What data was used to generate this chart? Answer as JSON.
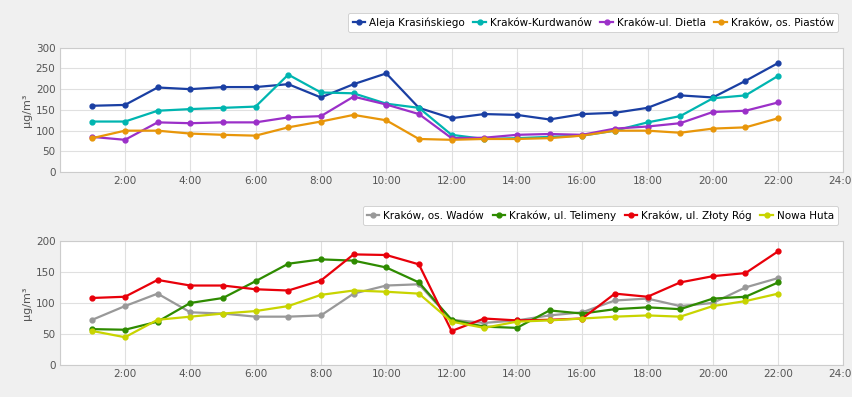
{
  "x_ticks": [
    0,
    2,
    4,
    6,
    8,
    10,
    12,
    14,
    16,
    18,
    20,
    22,
    24
  ],
  "x_labels": [
    "",
    "2:00",
    "4:00",
    "6:00",
    "8:00",
    "10:00",
    "12:00",
    "14:00",
    "16:00",
    "18:00",
    "20:00",
    "22:00",
    "24:00"
  ],
  "top": {
    "series": {
      "Aleja Krasińskiego": {
        "color": "#1a3fa3",
        "x": [
          1,
          2,
          3,
          4,
          5,
          6,
          7,
          8,
          9,
          10,
          11,
          12,
          13,
          14,
          15,
          16,
          17,
          18,
          19,
          20,
          21,
          22
        ],
        "y": [
          160,
          162,
          204,
          200,
          205,
          205,
          212,
          180,
          212,
          238,
          155,
          130,
          140,
          138,
          127,
          140,
          143,
          155,
          185,
          180,
          220,
          263
        ]
      },
      "Kraków-Kurdwanów": {
        "color": "#00b5b0",
        "x": [
          1,
          2,
          3,
          4,
          5,
          6,
          7,
          8,
          9,
          10,
          11,
          12,
          13,
          14,
          15,
          16,
          17,
          18,
          19,
          20,
          21,
          22
        ],
        "y": [
          122,
          122,
          148,
          152,
          155,
          158,
          235,
          192,
          190,
          165,
          155,
          90,
          80,
          82,
          85,
          88,
          100,
          120,
          135,
          178,
          185,
          232
        ]
      },
      "Kraków-ul. Dietla": {
        "color": "#9b30c8",
        "x": [
          1,
          2,
          3,
          4,
          5,
          6,
          7,
          8,
          9,
          10,
          11,
          12,
          13,
          14,
          15,
          16,
          17,
          18,
          19,
          20,
          21,
          22
        ],
        "y": [
          85,
          78,
          120,
          118,
          120,
          120,
          132,
          135,
          182,
          163,
          140,
          82,
          83,
          90,
          92,
          90,
          105,
          110,
          118,
          145,
          148,
          168
        ]
      },
      "Kraków, os. Piastów": {
        "color": "#e8960a",
        "x": [
          1,
          2,
          3,
          4,
          5,
          6,
          7,
          8,
          9,
          10,
          11,
          12,
          13,
          14,
          15,
          16,
          17,
          18,
          19,
          20,
          21,
          22
        ],
        "y": [
          82,
          100,
          100,
          93,
          90,
          88,
          108,
          122,
          138,
          125,
          80,
          78,
          80,
          80,
          82,
          88,
          100,
          100,
          95,
          105,
          108,
          130
        ]
      }
    },
    "ylim": [
      0,
      300
    ],
    "yticks": [
      0,
      50,
      100,
      150,
      200,
      250,
      300
    ],
    "ylabel": "µg/m³"
  },
  "bottom": {
    "series": {
      "Kraków, os. Wadów": {
        "color": "#999999",
        "x": [
          1,
          2,
          3,
          4,
          5,
          6,
          7,
          8,
          9,
          10,
          11,
          12,
          13,
          14,
          15,
          16,
          17,
          18,
          19,
          20,
          21,
          22
        ],
        "y": [
          73,
          95,
          115,
          85,
          83,
          78,
          78,
          80,
          115,
          128,
          130,
          73,
          68,
          72,
          80,
          85,
          104,
          107,
          95,
          100,
          125,
          140
        ]
      },
      "Kraków, ul. Telimeny": {
        "color": "#2e8b00",
        "x": [
          1,
          2,
          3,
          4,
          5,
          6,
          7,
          8,
          9,
          10,
          11,
          12,
          13,
          14,
          15,
          16,
          17,
          18,
          19,
          20,
          21,
          22
        ],
        "y": [
          58,
          57,
          70,
          100,
          108,
          135,
          163,
          170,
          168,
          157,
          133,
          73,
          62,
          60,
          88,
          83,
          90,
          93,
          90,
          107,
          110,
          133
        ]
      },
      "Kraków, ul. Złoty Róg": {
        "color": "#e8000a",
        "x": [
          1,
          2,
          3,
          4,
          5,
          6,
          7,
          8,
          9,
          10,
          11,
          12,
          13,
          14,
          15,
          16,
          17,
          18,
          19,
          20,
          21,
          22
        ],
        "y": [
          108,
          110,
          137,
          128,
          128,
          122,
          120,
          136,
          178,
          177,
          162,
          55,
          75,
          72,
          73,
          75,
          115,
          110,
          133,
          143,
          148,
          183
        ]
      },
      "Nowa Huta": {
        "color": "#c8d400",
        "x": [
          1,
          2,
          3,
          4,
          5,
          6,
          7,
          8,
          9,
          10,
          11,
          12,
          13,
          14,
          15,
          16,
          17,
          18,
          19,
          20,
          21,
          22
        ],
        "y": [
          55,
          45,
          73,
          78,
          83,
          87,
          95,
          113,
          120,
          118,
          115,
          70,
          60,
          70,
          72,
          75,
          78,
          80,
          78,
          95,
          103,
          115
        ]
      }
    },
    "ylim": [
      0,
      200
    ],
    "yticks": [
      0,
      50,
      100,
      150,
      200
    ],
    "ylabel": "µg/m³"
  },
  "plot_bg": "#ffffff",
  "fig_bg": "#f0f0f0",
  "grid_color": "#e0e0e0",
  "marker": "o",
  "markersize": 3.5,
  "linewidth": 1.6
}
